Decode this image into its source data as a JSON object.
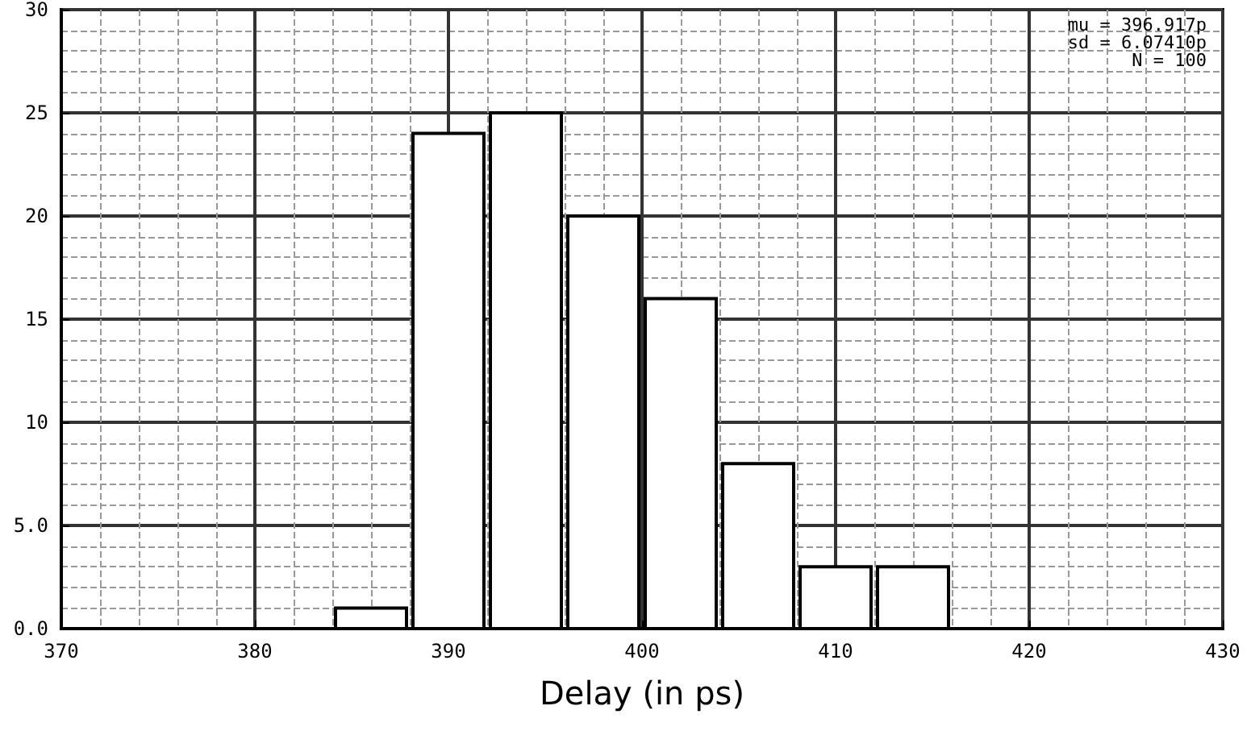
{
  "chart_data": {
    "type": "histogram",
    "xlabel": "Delay (in ps)",
    "bins": [
      384,
      388,
      392,
      396,
      400,
      404,
      408,
      412,
      416
    ],
    "values": [
      1,
      24,
      25,
      20,
      16,
      8,
      3,
      3
    ],
    "color": "#ffffff",
    "xlim": [
      370,
      430
    ],
    "xticks": [
      370,
      380,
      390,
      400,
      410,
      420,
      430
    ],
    "ylim": [
      0,
      30
    ],
    "yticks": [
      {
        "value": 0,
        "label": "0.0"
      },
      {
        "value": 5,
        "label": "5.0"
      },
      10,
      15,
      20,
      25,
      30
    ],
    "grid": true,
    "annotations": [
      "mu = 396.917p",
      "sd = 6.07410p",
      "N = 100"
    ]
  }
}
